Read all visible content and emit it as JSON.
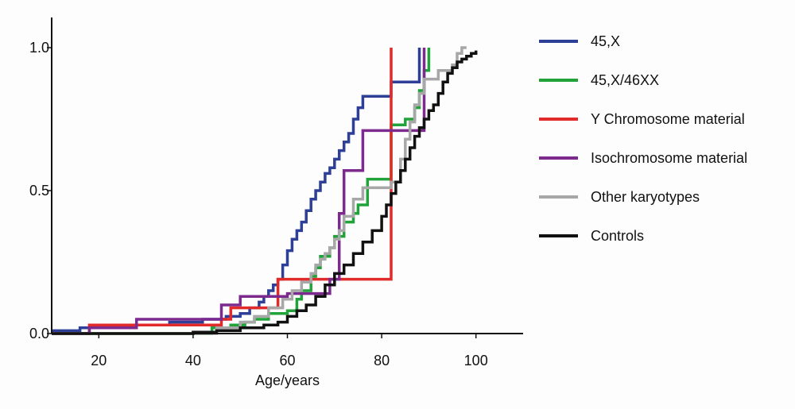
{
  "chart_data": {
    "type": "line",
    "title": "",
    "xlabel": "Age/years",
    "ylabel": "",
    "xlim": [
      10,
      110
    ],
    "ylim": [
      0,
      1.0
    ],
    "x_ticks": [
      20,
      40,
      60,
      80,
      100
    ],
    "y_ticks": [
      0.0,
      0.5,
      1.0
    ],
    "x_tick_labels": [
      "20",
      "40",
      "60",
      "80",
      "100"
    ],
    "y_tick_labels": [
      "0.0",
      "0.5",
      "1.0"
    ],
    "grid": false,
    "legend_position": "right",
    "step": true,
    "series": [
      {
        "name": "45,X",
        "color": "#2e3f97",
        "x": [
          10,
          16,
          25,
          35,
          42,
          47,
          50,
          52,
          54,
          55,
          56,
          57,
          58,
          59,
          60,
          61,
          62,
          63,
          64,
          65,
          66,
          67,
          68,
          69,
          70,
          71,
          72,
          73,
          74,
          75,
          76,
          77,
          78,
          79,
          80,
          82,
          88
        ],
        "y": [
          0.01,
          0.02,
          0.03,
          0.04,
          0.05,
          0.06,
          0.07,
          0.09,
          0.11,
          0.13,
          0.15,
          0.17,
          0.19,
          0.24,
          0.29,
          0.33,
          0.36,
          0.39,
          0.43,
          0.47,
          0.5,
          0.53,
          0.56,
          0.58,
          0.61,
          0.64,
          0.67,
          0.7,
          0.75,
          0.79,
          0.83,
          0.83,
          0.83,
          0.83,
          0.83,
          0.88,
          1.0
        ]
      },
      {
        "name": "45,X/46XX",
        "color": "#22a33a",
        "x": [
          10,
          33,
          44,
          48,
          51,
          53,
          56,
          60,
          62,
          63,
          65,
          66,
          67,
          69,
          70,
          72,
          74,
          75,
          77,
          82,
          85,
          87,
          88,
          89,
          90
        ],
        "y": [
          0.0,
          0.0,
          0.02,
          0.03,
          0.04,
          0.05,
          0.07,
          0.08,
          0.12,
          0.15,
          0.2,
          0.23,
          0.27,
          0.3,
          0.34,
          0.39,
          0.42,
          0.45,
          0.54,
          0.73,
          0.75,
          0.79,
          0.85,
          0.92,
          1.0
        ]
      },
      {
        "name": "Y Chromosome material",
        "color": "#e12a2a",
        "x": [
          10,
          18,
          46,
          48,
          50,
          58,
          82
        ],
        "y": [
          0.0,
          0.03,
          0.05,
          0.09,
          0.09,
          0.19,
          1.0
        ]
      },
      {
        "name": "Isochromosome material",
        "color": "#7d2a8f",
        "x": [
          10,
          18,
          28,
          38,
          46,
          50,
          56,
          60,
          69,
          71,
          72,
          73,
          76,
          89
        ],
        "y": [
          0.0,
          0.02,
          0.05,
          0.05,
          0.1,
          0.13,
          0.13,
          0.14,
          0.19,
          0.42,
          0.57,
          0.57,
          0.71,
          1.0
        ]
      },
      {
        "name": "Other karyotypes",
        "color": "#a7a7a7",
        "x": [
          10,
          38,
          45,
          50,
          53,
          56,
          59,
          61,
          63,
          65,
          66,
          67,
          68,
          69,
          70,
          71,
          72,
          74,
          76,
          80,
          82,
          84,
          85,
          86,
          87,
          88,
          89,
          92,
          95,
          96,
          97,
          98
        ],
        "y": [
          0.0,
          0.0,
          0.02,
          0.04,
          0.06,
          0.09,
          0.12,
          0.15,
          0.18,
          0.21,
          0.24,
          0.26,
          0.28,
          0.3,
          0.33,
          0.36,
          0.41,
          0.47,
          0.51,
          0.51,
          0.53,
          0.61,
          0.68,
          0.74,
          0.8,
          0.84,
          0.89,
          0.92,
          0.94,
          0.98,
          1.0,
          1.0
        ]
      },
      {
        "name": "Controls",
        "color": "#111111",
        "x": [
          10,
          35,
          40,
          45,
          50,
          55,
          58,
          60,
          62,
          64,
          66,
          68,
          70,
          72,
          74,
          76,
          78,
          80,
          81,
          82,
          83,
          84,
          85,
          86,
          87,
          88,
          89,
          90,
          91,
          92,
          93,
          94,
          95,
          96,
          97,
          98,
          99,
          100
        ],
        "y": [
          0.0,
          0.0,
          0.005,
          0.01,
          0.02,
          0.03,
          0.04,
          0.06,
          0.08,
          0.1,
          0.13,
          0.17,
          0.21,
          0.24,
          0.28,
          0.32,
          0.36,
          0.41,
          0.45,
          0.49,
          0.53,
          0.57,
          0.61,
          0.65,
          0.69,
          0.72,
          0.75,
          0.78,
          0.8,
          0.84,
          0.88,
          0.91,
          0.93,
          0.95,
          0.96,
          0.97,
          0.98,
          0.99
        ]
      }
    ]
  }
}
